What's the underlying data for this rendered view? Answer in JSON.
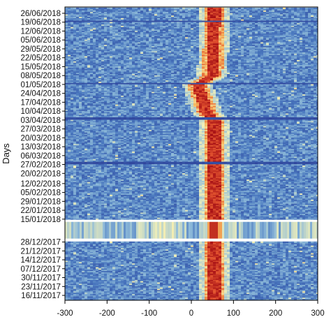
{
  "chart_data": {
    "type": "heatmap",
    "title": "",
    "xlabel": "",
    "ylabel": "Days",
    "xlim": [
      -300,
      300
    ],
    "x_ticks": [
      -300,
      -200,
      -100,
      0,
      100,
      200,
      300
    ],
    "ylim": [
      "16/11/2017",
      "26/06/2018"
    ],
    "y_tick_labels": [
      "26/06/2018",
      "19/06/2018",
      "12/06/2018",
      "05/06/2018",
      "29/05/2018",
      "22/05/2018",
      "15/05/2018",
      "08/05/2018",
      "01/05/2018",
      "24/04/2018",
      "17/04/2018",
      "10/04/2018",
      "03/04/2018",
      "27/03/2018",
      "20/03/2018",
      "13/03/2018",
      "06/03/2018",
      "27/02/2018",
      "20/02/2018",
      "12/02/2018",
      "05/02/2018",
      "29/01/2018",
      "22/01/2018",
      "15/01/2018",
      "28/12/2017",
      "21/12/2017",
      "14/12/2017",
      "07/12/2017",
      "30/11/2017",
      "23/11/2017",
      "16/11/2017"
    ],
    "colormap": [
      "#2c3f98",
      "#4a78bf",
      "#8fbbd9",
      "#f2f0b8",
      "#f6b55c",
      "#e2532f",
      "#a50f15"
    ],
    "ridge_center_x": [
      {
        "date": "16/11/2017",
        "x": 55
      },
      {
        "date": "15/01/2018",
        "x": 55
      },
      {
        "date": "20/02/2018",
        "x": 55
      },
      {
        "date": "03/04/2018",
        "x": 55
      },
      {
        "date": "10/04/2018",
        "x": 35
      },
      {
        "date": "17/04/2018",
        "x": 30
      },
      {
        "date": "24/04/2018",
        "x": 22
      },
      {
        "date": "01/05/2018",
        "x": 15
      },
      {
        "date": "08/05/2018",
        "x": 50
      },
      {
        "date": "26/06/2018",
        "x": 55
      }
    ],
    "gap_intervals": [
      [
        "29/12/2017",
        "14/01/2018"
      ]
    ],
    "dark_rows": [
      "02/05/2018",
      "04/04/2018",
      "05/04/2018",
      "28/02/2018",
      "01/03/2018",
      "20/06/2018"
    ]
  }
}
